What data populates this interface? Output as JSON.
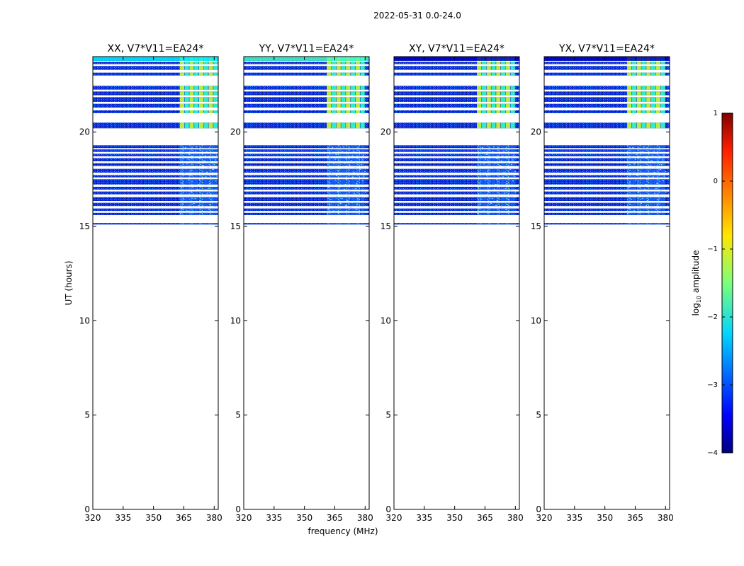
{
  "suptitle": "2022-05-31 0.0-24.0",
  "xlabel": "frequency (MHz)",
  "ylabel": "UT (hours)",
  "colorbar": {
    "label": "log",
    "label_sub": "10",
    "label_rest": " amplitude",
    "range": [
      -4,
      1
    ],
    "ticks": [
      1,
      0,
      -1,
      -2,
      -3,
      -4
    ],
    "tick_labels": [
      "1",
      "0",
      "−1",
      "−2",
      "−3",
      "−4"
    ],
    "colormap": "jet"
  },
  "chart_data": {
    "type": "heatmap",
    "xlim": [
      320,
      382
    ],
    "ylim": [
      0,
      24
    ],
    "xticks": [
      320,
      335,
      350,
      365,
      380
    ],
    "yticks": [
      0,
      5,
      10,
      15,
      20
    ],
    "data_bands_hours": [
      [
        15.1,
        15.18
      ],
      [
        15.6,
        15.72
      ],
      [
        15.82,
        15.95
      ],
      [
        16.08,
        16.25
      ],
      [
        16.35,
        16.55
      ],
      [
        16.7,
        16.85
      ],
      [
        16.95,
        17.1
      ],
      [
        17.22,
        17.5
      ],
      [
        17.6,
        17.72
      ],
      [
        17.85,
        18.05
      ],
      [
        18.2,
        18.35
      ],
      [
        18.45,
        18.62
      ],
      [
        18.72,
        18.85
      ],
      [
        18.95,
        19.08
      ],
      [
        19.15,
        19.3
      ],
      [
        20.2,
        20.5
      ],
      [
        21.0,
        21.15
      ],
      [
        21.3,
        21.5
      ],
      [
        21.6,
        21.85
      ],
      [
        21.95,
        22.15
      ],
      [
        22.25,
        22.45
      ],
      [
        23.0,
        23.15
      ],
      [
        23.3,
        23.5
      ],
      [
        23.6,
        23.72
      ],
      [
        23.78,
        24.0
      ]
    ],
    "panels": [
      {
        "title": "XX, V7*V11=EA24*",
        "strong_freq_range": [
          363,
          382
        ],
        "top_band_level": -2.2
      },
      {
        "title": "YY, V7*V11=EA24*",
        "strong_freq_range": [
          361,
          380
        ],
        "top_band_level": -1.8
      },
      {
        "title": "XY, V7*V11=EA24*",
        "strong_freq_range": [
          361,
          380
        ],
        "top_band_level": -3.7
      },
      {
        "title": "YX, V7*V11=EA24*",
        "strong_freq_range": [
          361,
          380
        ],
        "top_band_level": -3.7
      }
    ]
  }
}
